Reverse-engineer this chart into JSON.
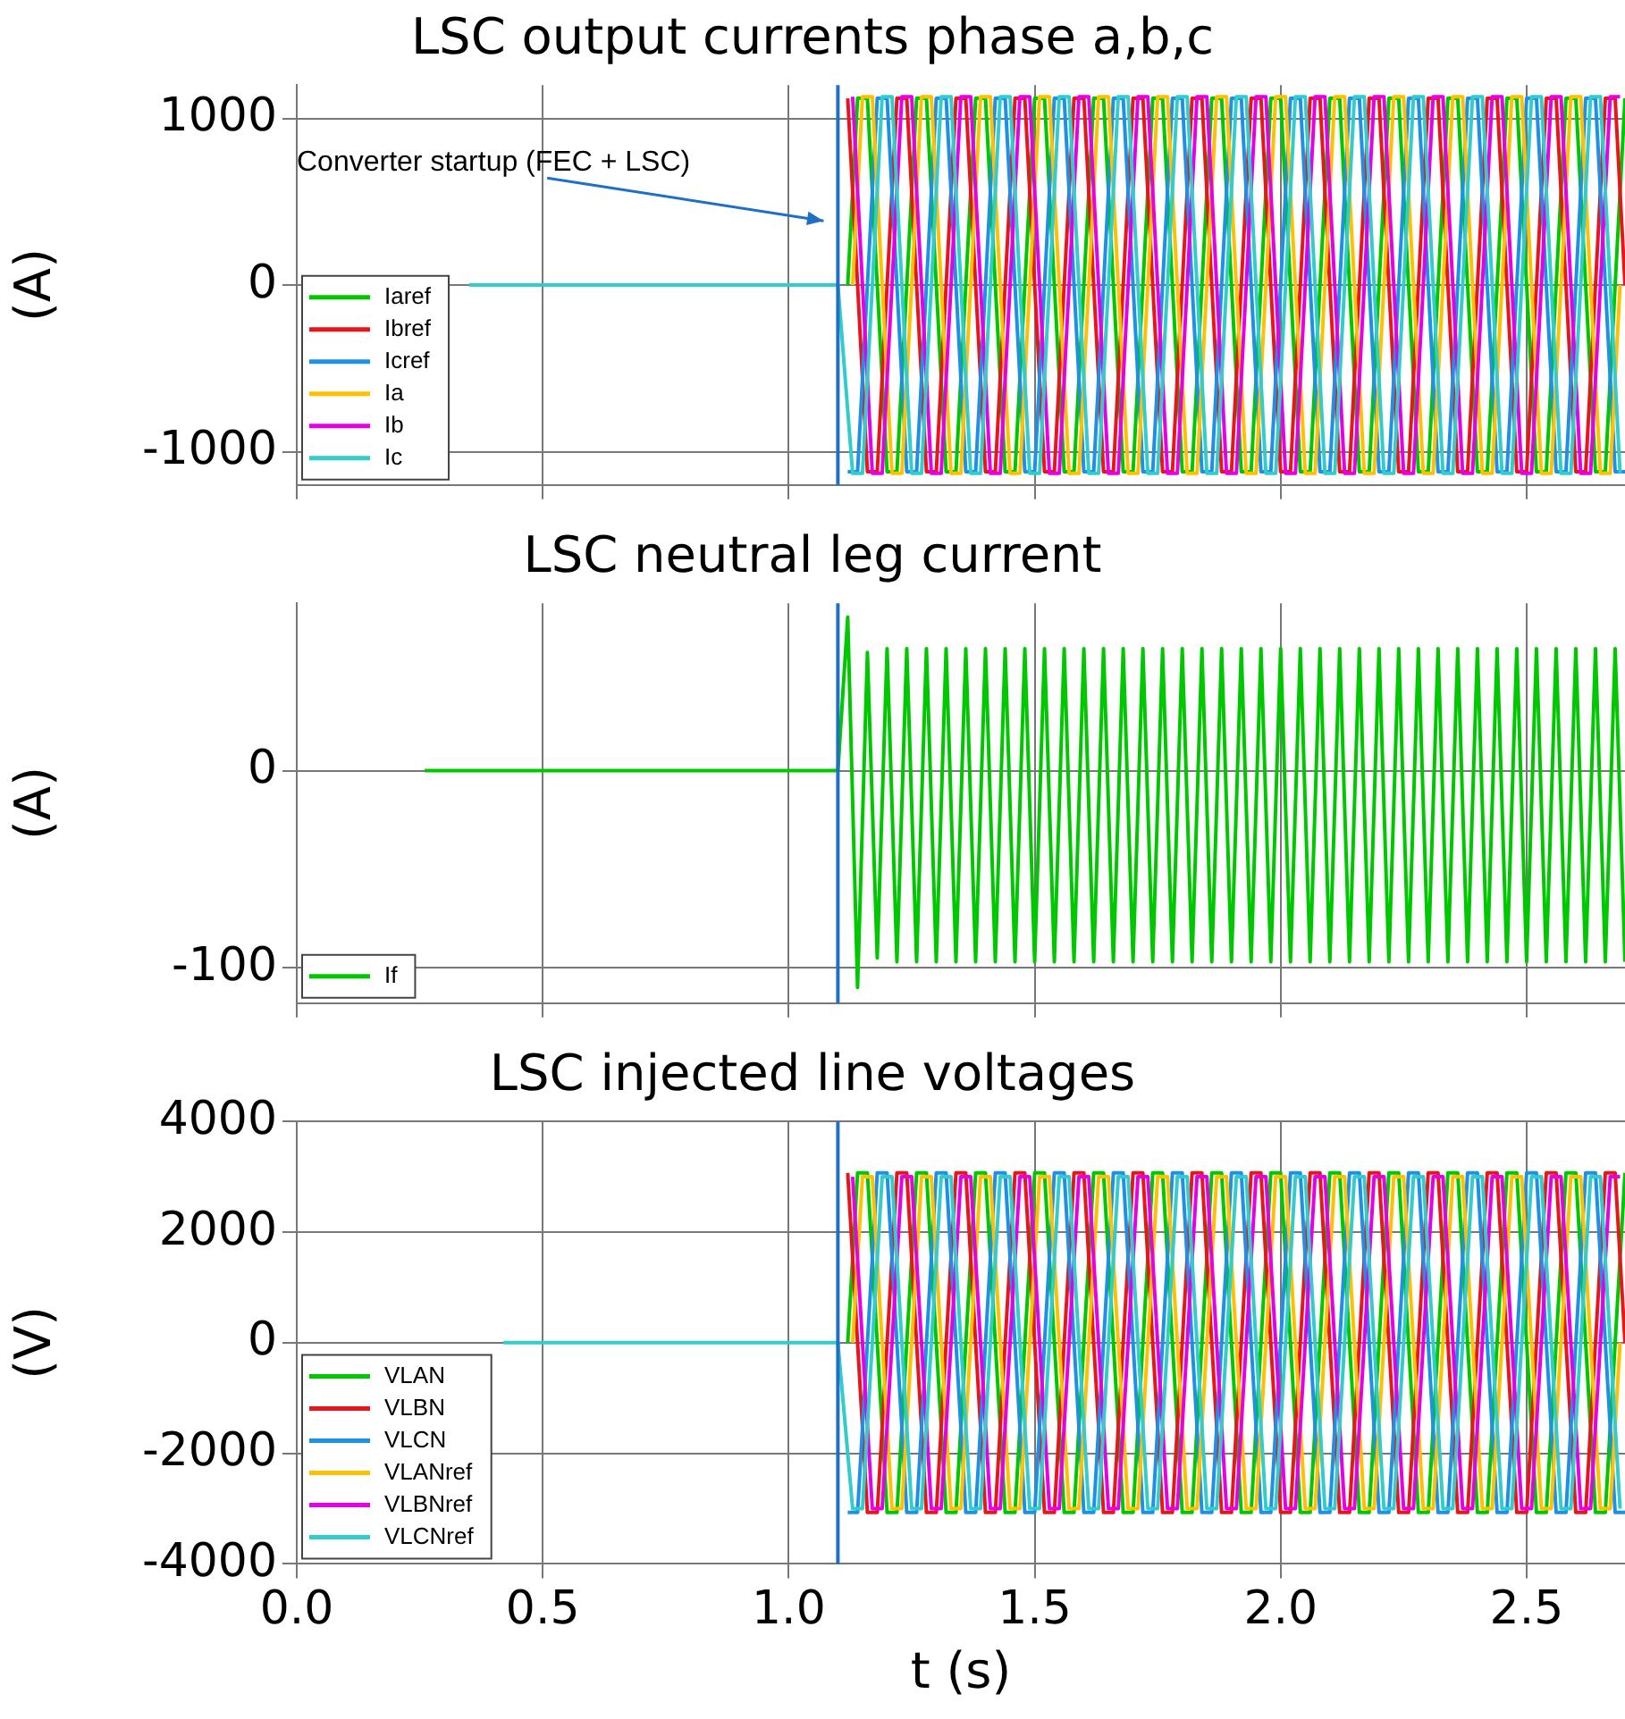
{
  "chart_data": [
    {
      "type": "line",
      "title": "LSC output currents phase a,b,c",
      "ylabel": "(A)",
      "legend": "bottom left",
      "grid": true,
      "marker": "none",
      "line_style": "solid",
      "tick_labels": "y",
      "xlim": [
        0,
        2.7
      ],
      "xticks": [
        0,
        0.5,
        1,
        1.5,
        2,
        2.5
      ],
      "ylim": [
        -1200,
        1200
      ],
      "yticks": [
        -1000,
        0,
        1000
      ],
      "ref_lines": [
        {
          "axis": "x",
          "value": 1.1,
          "color": "#1f6fc4"
        }
      ],
      "annotations": [
        "Converter startup (FEC + LSC)"
      ],
      "x": [
        1.12,
        1.14,
        1.16,
        1.18,
        1.2,
        1.22,
        1.24,
        1.26,
        1.28,
        1.3,
        1.32,
        1.34,
        1.36,
        1.38,
        1.4,
        1.42,
        1.44,
        1.46,
        1.48,
        1.5,
        1.52,
        1.54,
        1.56,
        1.58,
        1.6,
        1.62,
        1.64,
        1.66,
        1.68,
        1.7,
        1.72,
        1.74,
        1.76,
        1.78,
        1.8,
        1.82,
        1.84,
        1.86,
        1.88,
        1.9,
        1.92,
        1.94,
        1.96,
        1.98,
        2,
        2.02,
        2.04,
        2.06,
        2.08,
        2.1,
        2.12,
        2.14,
        2.16,
        2.18,
        2.2,
        2.22,
        2.24,
        2.26,
        2.28,
        2.3,
        2.32,
        2.34,
        2.36,
        2.38,
        2.4,
        2.42,
        2.44,
        2.46,
        2.48,
        2.5,
        2.52,
        2.54,
        2.56,
        2.58,
        2.6,
        2.62,
        2.64,
        2.66,
        2.68,
        2.7
      ],
      "series": [
        {
          "name": "Iaref",
          "color": "#00c800",
          "values": [
            0,
            1120,
            1120,
            0,
            -1120,
            -1120,
            0,
            1120,
            1120,
            0,
            -1120,
            -1120,
            0,
            1120,
            1120,
            0,
            -1120,
            -1120,
            0,
            1120,
            1120,
            0,
            -1120,
            -1120,
            0,
            1120,
            1120,
            0,
            -1120,
            -1120,
            0,
            1120,
            1120,
            0,
            -1120,
            -1120,
            0,
            1120,
            1120,
            0,
            -1120,
            -1120,
            0,
            1120,
            1120,
            0,
            -1120,
            -1120,
            0,
            1120,
            1120,
            0,
            -1120,
            -1120,
            0,
            1120,
            1120,
            0,
            -1120,
            -1120,
            0,
            1120,
            1120,
            0,
            -1120,
            -1120,
            0,
            1120,
            1120,
            0,
            -1120,
            -1120,
            0,
            1120,
            1120,
            0,
            -1120,
            -1120,
            0,
            1120
          ]
        },
        {
          "name": "Ibref",
          "color": "#e8161b",
          "values": [
            1120,
            0,
            -1120,
            -1120,
            0,
            1120,
            1120,
            0,
            -1120,
            -1120,
            0,
            1120,
            1120,
            0,
            -1120,
            -1120,
            0,
            1120,
            1120,
            0,
            -1120,
            -1120,
            0,
            1120,
            1120,
            0,
            -1120,
            -1120,
            0,
            1120,
            1120,
            0,
            -1120,
            -1120,
            0,
            1120,
            1120,
            0,
            -1120,
            -1120,
            0,
            1120,
            1120,
            0,
            -1120,
            -1120,
            0,
            1120,
            1120,
            0,
            -1120,
            -1120,
            0,
            1120,
            1120,
            0,
            -1120,
            -1120,
            0,
            1120,
            1120,
            0,
            -1120,
            -1120,
            0,
            1120,
            1120,
            0,
            -1120,
            -1120,
            0,
            1120,
            1120,
            0,
            -1120,
            -1120,
            0,
            1120,
            1120,
            0
          ]
        },
        {
          "name": "Icref",
          "color": "#1e90e6",
          "values": [
            -1120,
            -1120,
            0,
            1120,
            1120,
            0,
            -1120,
            -1120,
            0,
            1120,
            1120,
            0,
            -1120,
            -1120,
            0,
            1120,
            1120,
            0,
            -1120,
            -1120,
            0,
            1120,
            1120,
            0,
            -1120,
            -1120,
            0,
            1120,
            1120,
            0,
            -1120,
            -1120,
            0,
            1120,
            1120,
            0,
            -1120,
            -1120,
            0,
            1120,
            1120,
            0,
            -1120,
            -1120,
            0,
            1120,
            1120,
            0,
            -1120,
            -1120,
            0,
            1120,
            1120,
            0,
            -1120,
            -1120,
            0,
            1120,
            1120,
            0,
            -1120,
            -1120,
            0,
            1120,
            1120,
            0,
            -1120,
            -1120,
            0,
            1120,
            1120,
            0,
            -1120,
            -1120,
            0,
            1120,
            1120,
            0,
            -1120,
            -1120
          ]
        },
        {
          "name": "Ia",
          "color": "#ffc000",
          "x": [
            1.13,
            1.15,
            1.17,
            1.19,
            1.21,
            1.23,
            1.25,
            1.27,
            1.29,
            1.31,
            1.33,
            1.35,
            1.37,
            1.39,
            1.41,
            1.43,
            1.45,
            1.47,
            1.49,
            1.51,
            1.53,
            1.55,
            1.57,
            1.59,
            1.61,
            1.63,
            1.65,
            1.67,
            1.69,
            1.71,
            1.73,
            1.75,
            1.77,
            1.79,
            1.81,
            1.83,
            1.85,
            1.87,
            1.89,
            1.91,
            1.93,
            1.95,
            1.97,
            1.99,
            2.01,
            2.03,
            2.05,
            2.07,
            2.09,
            2.11,
            2.13,
            2.15,
            2.17,
            2.19,
            2.21,
            2.23,
            2.25,
            2.27,
            2.29,
            2.31,
            2.33,
            2.35,
            2.37,
            2.39,
            2.41,
            2.43,
            2.45,
            2.47,
            2.49,
            2.51,
            2.53,
            2.55,
            2.57,
            2.59,
            2.61,
            2.63,
            2.65,
            2.67,
            2.69
          ],
          "values": [
            0,
            1130,
            1130,
            0,
            -1130,
            -1130,
            0,
            1130,
            1130,
            0,
            -1130,
            -1130,
            0,
            1130,
            1130,
            0,
            -1130,
            -1130,
            0,
            1130,
            1130,
            0,
            -1130,
            -1130,
            0,
            1130,
            1130,
            0,
            -1130,
            -1130,
            0,
            1130,
            1130,
            0,
            -1130,
            -1130,
            0,
            1130,
            1130,
            0,
            -1130,
            -1130,
            0,
            1130,
            1130,
            0,
            -1130,
            -1130,
            0,
            1130,
            1130,
            0,
            -1130,
            -1130,
            0,
            1130,
            1130,
            0,
            -1130,
            -1130,
            0,
            1130,
            1130,
            0,
            -1130,
            -1130,
            0,
            1130,
            1130,
            0,
            -1130,
            -1130,
            0,
            1130,
            1130,
            0,
            -1130,
            -1130,
            0
          ]
        },
        {
          "name": "Ib",
          "color": "#e600e6",
          "x": [
            1.13,
            1.15,
            1.17,
            1.19,
            1.21,
            1.23,
            1.25,
            1.27,
            1.29,
            1.31,
            1.33,
            1.35,
            1.37,
            1.39,
            1.41,
            1.43,
            1.45,
            1.47,
            1.49,
            1.51,
            1.53,
            1.55,
            1.57,
            1.59,
            1.61,
            1.63,
            1.65,
            1.67,
            1.69,
            1.71,
            1.73,
            1.75,
            1.77,
            1.79,
            1.81,
            1.83,
            1.85,
            1.87,
            1.89,
            1.91,
            1.93,
            1.95,
            1.97,
            1.99,
            2.01,
            2.03,
            2.05,
            2.07,
            2.09,
            2.11,
            2.13,
            2.15,
            2.17,
            2.19,
            2.21,
            2.23,
            2.25,
            2.27,
            2.29,
            2.31,
            2.33,
            2.35,
            2.37,
            2.39,
            2.41,
            2.43,
            2.45,
            2.47,
            2.49,
            2.51,
            2.53,
            2.55,
            2.57,
            2.59,
            2.61,
            2.63,
            2.65,
            2.67,
            2.69
          ],
          "values": [
            1130,
            0,
            -1130,
            -1130,
            0,
            1130,
            1130,
            0,
            -1130,
            -1130,
            0,
            1130,
            1130,
            0,
            -1130,
            -1130,
            0,
            1130,
            1130,
            0,
            -1130,
            -1130,
            0,
            1130,
            1130,
            0,
            -1130,
            -1130,
            0,
            1130,
            1130,
            0,
            -1130,
            -1130,
            0,
            1130,
            1130,
            0,
            -1130,
            -1130,
            0,
            1130,
            1130,
            0,
            -1130,
            -1130,
            0,
            1130,
            1130,
            0,
            -1130,
            -1130,
            0,
            1130,
            1130,
            0,
            -1130,
            -1130,
            0,
            1130,
            1130,
            0,
            -1130,
            -1130,
            0,
            1130,
            1130,
            0,
            -1130,
            -1130,
            0,
            1130,
            1130,
            0,
            -1130,
            -1130,
            0,
            1130,
            1130
          ]
        },
        {
          "name": "Ic",
          "color": "#33cccc",
          "x": [
            0.35,
            1.1,
            1.13,
            1.15,
            1.17,
            1.19,
            1.21,
            1.23,
            1.25,
            1.27,
            1.29,
            1.31,
            1.33,
            1.35,
            1.37,
            1.39,
            1.41,
            1.43,
            1.45,
            1.47,
            1.49,
            1.51,
            1.53,
            1.55,
            1.57,
            1.59,
            1.61,
            1.63,
            1.65,
            1.67,
            1.69,
            1.71,
            1.73,
            1.75,
            1.77,
            1.79,
            1.81,
            1.83,
            1.85,
            1.87,
            1.89,
            1.91,
            1.93,
            1.95,
            1.97,
            1.99,
            2.01,
            2.03,
            2.05,
            2.07,
            2.09,
            2.11,
            2.13,
            2.15,
            2.17,
            2.19,
            2.21,
            2.23,
            2.25,
            2.27,
            2.29,
            2.31,
            2.33,
            2.35,
            2.37,
            2.39,
            2.41,
            2.43,
            2.45,
            2.47,
            2.49,
            2.51,
            2.53,
            2.55,
            2.57,
            2.59,
            2.61,
            2.63,
            2.65,
            2.67,
            2.69
          ],
          "values": [
            0,
            0,
            -1130,
            -1130,
            0,
            1130,
            1130,
            0,
            -1130,
            -1130,
            0,
            1130,
            1130,
            0,
            -1130,
            -1130,
            0,
            1130,
            1130,
            0,
            -1130,
            -1130,
            0,
            1130,
            1130,
            0,
            -1130,
            -1130,
            0,
            1130,
            1130,
            0,
            -1130,
            -1130,
            0,
            1130,
            1130,
            0,
            -1130,
            -1130,
            0,
            1130,
            1130,
            0,
            -1130,
            -1130,
            0,
            1130,
            1130,
            0,
            -1130,
            -1130,
            0,
            1130,
            1130,
            0,
            -1130,
            -1130,
            0,
            1130,
            1130,
            0,
            -1130,
            -1130,
            0,
            1130,
            1130,
            0,
            -1130,
            -1130,
            0,
            1130,
            1130,
            0,
            -1130,
            -1130,
            0,
            1130,
            1130,
            0,
            -1130
          ]
        }
      ]
    },
    {
      "type": "line",
      "title": "LSC neutral leg current",
      "ylabel": "(A)",
      "legend": "bottom left",
      "grid": true,
      "marker": "none",
      "line_style": "solid",
      "tick_labels": "y",
      "xlim": [
        0,
        2.7
      ],
      "xticks": [
        0,
        0.5,
        1,
        1.5,
        2,
        2.5
      ],
      "ylim": [
        -118,
        85
      ],
      "yticks": [
        -100,
        0
      ],
      "ref_lines": [
        {
          "axis": "x",
          "value": 1.1,
          "color": "#1f6fc4"
        }
      ],
      "x": [
        0.26,
        1.1,
        1.12,
        1.14,
        1.16,
        1.18,
        1.2,
        1.22,
        1.24,
        1.26,
        1.28,
        1.3,
        1.32,
        1.34,
        1.36,
        1.38,
        1.4,
        1.42,
        1.44,
        1.46,
        1.48,
        1.5,
        1.52,
        1.54,
        1.56,
        1.58,
        1.6,
        1.62,
        1.64,
        1.66,
        1.68,
        1.7,
        1.72,
        1.74,
        1.76,
        1.78,
        1.8,
        1.82,
        1.84,
        1.86,
        1.88,
        1.9,
        1.92,
        1.94,
        1.96,
        1.98,
        2,
        2.02,
        2.04,
        2.06,
        2.08,
        2.1,
        2.12,
        2.14,
        2.16,
        2.18,
        2.2,
        2.22,
        2.24,
        2.26,
        2.28,
        2.3,
        2.32,
        2.34,
        2.36,
        2.38,
        2.4,
        2.42,
        2.44,
        2.46,
        2.48,
        2.5,
        2.52,
        2.54,
        2.56,
        2.58,
        2.6,
        2.62,
        2.64,
        2.66,
        2.68,
        2.7
      ],
      "series": [
        {
          "name": "If",
          "color": "#00c800",
          "values": [
            0,
            0,
            78,
            -110,
            60,
            -95,
            62,
            -97,
            62,
            -97,
            62,
            -97,
            62,
            -97,
            62,
            -97,
            62,
            -97,
            62,
            -97,
            62,
            -97,
            62,
            -97,
            62,
            -97,
            62,
            -97,
            62,
            -97,
            62,
            -97,
            62,
            -97,
            62,
            -97,
            62,
            -97,
            62,
            -97,
            62,
            -97,
            62,
            -97,
            62,
            -97,
            62,
            -97,
            62,
            -97,
            62,
            -97,
            62,
            -97,
            62,
            -97,
            62,
            -97,
            62,
            -97,
            62,
            -97,
            62,
            -97,
            62,
            -97,
            62,
            -97,
            62,
            -97,
            62,
            -97,
            62,
            -97,
            62,
            -97,
            62,
            -97,
            62,
            -97,
            62,
            -97
          ]
        }
      ]
    },
    {
      "type": "line",
      "title": "LSC injected line voltages",
      "xlabel": "t (s)",
      "ylabel": "(V)",
      "legend": "bottom left",
      "grid": true,
      "marker": "none",
      "line_style": "solid",
      "xlim": [
        0,
        2.7
      ],
      "xticks": [
        {
          "value": 0,
          "label": "0.0"
        },
        0.5,
        {
          "value": 1,
          "label": "1.0"
        },
        1.5,
        {
          "value": 2,
          "label": "2.0"
        },
        2.5
      ],
      "ylim": [
        -4000,
        4000
      ],
      "yticks": [
        -4000,
        -2000,
        0,
        2000,
        4000
      ],
      "ref_lines": [
        {
          "axis": "x",
          "value": 1.1,
          "color": "#1f6fc4"
        }
      ],
      "x": [
        1.12,
        1.14,
        1.16,
        1.18,
        1.2,
        1.22,
        1.24,
        1.26,
        1.28,
        1.3,
        1.32,
        1.34,
        1.36,
        1.38,
        1.4,
        1.42,
        1.44,
        1.46,
        1.48,
        1.5,
        1.52,
        1.54,
        1.56,
        1.58,
        1.6,
        1.62,
        1.64,
        1.66,
        1.68,
        1.7,
        1.72,
        1.74,
        1.76,
        1.78,
        1.8,
        1.82,
        1.84,
        1.86,
        1.88,
        1.9,
        1.92,
        1.94,
        1.96,
        1.98,
        2,
        2.02,
        2.04,
        2.06,
        2.08,
        2.1,
        2.12,
        2.14,
        2.16,
        2.18,
        2.2,
        2.22,
        2.24,
        2.26,
        2.28,
        2.3,
        2.32,
        2.34,
        2.36,
        2.38,
        2.4,
        2.42,
        2.44,
        2.46,
        2.48,
        2.5,
        2.52,
        2.54,
        2.56,
        2.58,
        2.6,
        2.62,
        2.64,
        2.66,
        2.68,
        2.7
      ],
      "series": [
        {
          "name": "VLAN",
          "color": "#00c800",
          "values": [
            0,
            3070,
            3070,
            0,
            -3070,
            -3070,
            0,
            3070,
            3070,
            0,
            -3070,
            -3070,
            0,
            3070,
            3070,
            0,
            -3070,
            -3070,
            0,
            3070,
            3070,
            0,
            -3070,
            -3070,
            0,
            3070,
            3070,
            0,
            -3070,
            -3070,
            0,
            3070,
            3070,
            0,
            -3070,
            -3070,
            0,
            3070,
            3070,
            0,
            -3070,
            -3070,
            0,
            3070,
            3070,
            0,
            -3070,
            -3070,
            0,
            3070,
            3070,
            0,
            -3070,
            -3070,
            0,
            3070,
            3070,
            0,
            -3070,
            -3070,
            0,
            3070,
            3070,
            0,
            -3070,
            -3070,
            0,
            3070,
            3070,
            0,
            -3070,
            -3070,
            0,
            3070,
            3070,
            0,
            -3070,
            -3070,
            0,
            3070
          ]
        },
        {
          "name": "VLBN",
          "color": "#e8161b",
          "values": [
            3070,
            0,
            -3070,
            -3070,
            0,
            3070,
            3070,
            0,
            -3070,
            -3070,
            0,
            3070,
            3070,
            0,
            -3070,
            -3070,
            0,
            3070,
            3070,
            0,
            -3070,
            -3070,
            0,
            3070,
            3070,
            0,
            -3070,
            -3070,
            0,
            3070,
            3070,
            0,
            -3070,
            -3070,
            0,
            3070,
            3070,
            0,
            -3070,
            -3070,
            0,
            3070,
            3070,
            0,
            -3070,
            -3070,
            0,
            3070,
            3070,
            0,
            -3070,
            -3070,
            0,
            3070,
            3070,
            0,
            -3070,
            -3070,
            0,
            3070,
            3070,
            0,
            -3070,
            -3070,
            0,
            3070,
            3070,
            0,
            -3070,
            -3070,
            0,
            3070,
            3070,
            0,
            -3070,
            -3070,
            0,
            3070,
            3070,
            0
          ]
        },
        {
          "name": "VLCN",
          "color": "#1e90e6",
          "values": [
            -3070,
            -3070,
            0,
            3070,
            3070,
            0,
            -3070,
            -3070,
            0,
            3070,
            3070,
            0,
            -3070,
            -3070,
            0,
            3070,
            3070,
            0,
            -3070,
            -3070,
            0,
            3070,
            3070,
            0,
            -3070,
            -3070,
            0,
            3070,
            3070,
            0,
            -3070,
            -3070,
            0,
            3070,
            3070,
            0,
            -3070,
            -3070,
            0,
            3070,
            3070,
            0,
            -3070,
            -3070,
            0,
            3070,
            3070,
            0,
            -3070,
            -3070,
            0,
            3070,
            3070,
            0,
            -3070,
            -3070,
            0,
            3070,
            3070,
            0,
            -3070,
            -3070,
            0,
            3070,
            3070,
            0,
            -3070,
            -3070,
            0,
            3070,
            3070,
            0,
            -3070,
            -3070,
            0,
            3070,
            3070,
            0,
            -3070,
            -3070
          ]
        },
        {
          "name": "VLANref",
          "color": "#ffc000",
          "x": [
            1.13,
            1.15,
            1.17,
            1.19,
            1.21,
            1.23,
            1.25,
            1.27,
            1.29,
            1.31,
            1.33,
            1.35,
            1.37,
            1.39,
            1.41,
            1.43,
            1.45,
            1.47,
            1.49,
            1.51,
            1.53,
            1.55,
            1.57,
            1.59,
            1.61,
            1.63,
            1.65,
            1.67,
            1.69,
            1.71,
            1.73,
            1.75,
            1.77,
            1.79,
            1.81,
            1.83,
            1.85,
            1.87,
            1.89,
            1.91,
            1.93,
            1.95,
            1.97,
            1.99,
            2.01,
            2.03,
            2.05,
            2.07,
            2.09,
            2.11,
            2.13,
            2.15,
            2.17,
            2.19,
            2.21,
            2.23,
            2.25,
            2.27,
            2.29,
            2.31,
            2.33,
            2.35,
            2.37,
            2.39,
            2.41,
            2.43,
            2.45,
            2.47,
            2.49,
            2.51,
            2.53,
            2.55,
            2.57,
            2.59,
            2.61,
            2.63,
            2.65,
            2.67,
            2.69
          ],
          "values": [
            0,
            3000,
            3000,
            0,
            -3000,
            -3000,
            0,
            3000,
            3000,
            0,
            -3000,
            -3000,
            0,
            3000,
            3000,
            0,
            -3000,
            -3000,
            0,
            3000,
            3000,
            0,
            -3000,
            -3000,
            0,
            3000,
            3000,
            0,
            -3000,
            -3000,
            0,
            3000,
            3000,
            0,
            -3000,
            -3000,
            0,
            3000,
            3000,
            0,
            -3000,
            -3000,
            0,
            3000,
            3000,
            0,
            -3000,
            -3000,
            0,
            3000,
            3000,
            0,
            -3000,
            -3000,
            0,
            3000,
            3000,
            0,
            -3000,
            -3000,
            0,
            3000,
            3000,
            0,
            -3000,
            -3000,
            0,
            3000,
            3000,
            0,
            -3000,
            -3000,
            0,
            3000,
            3000,
            0,
            -3000,
            -3000,
            0
          ]
        },
        {
          "name": "VLBNref",
          "color": "#e600e6",
          "x": [
            1.13,
            1.15,
            1.17,
            1.19,
            1.21,
            1.23,
            1.25,
            1.27,
            1.29,
            1.31,
            1.33,
            1.35,
            1.37,
            1.39,
            1.41,
            1.43,
            1.45,
            1.47,
            1.49,
            1.51,
            1.53,
            1.55,
            1.57,
            1.59,
            1.61,
            1.63,
            1.65,
            1.67,
            1.69,
            1.71,
            1.73,
            1.75,
            1.77,
            1.79,
            1.81,
            1.83,
            1.85,
            1.87,
            1.89,
            1.91,
            1.93,
            1.95,
            1.97,
            1.99,
            2.01,
            2.03,
            2.05,
            2.07,
            2.09,
            2.11,
            2.13,
            2.15,
            2.17,
            2.19,
            2.21,
            2.23,
            2.25,
            2.27,
            2.29,
            2.31,
            2.33,
            2.35,
            2.37,
            2.39,
            2.41,
            2.43,
            2.45,
            2.47,
            2.49,
            2.51,
            2.53,
            2.55,
            2.57,
            2.59,
            2.61,
            2.63,
            2.65,
            2.67,
            2.69
          ],
          "values": [
            3000,
            0,
            -3000,
            -3000,
            0,
            3000,
            3000,
            0,
            -3000,
            -3000,
            0,
            3000,
            3000,
            0,
            -3000,
            -3000,
            0,
            3000,
            3000,
            0,
            -3000,
            -3000,
            0,
            3000,
            3000,
            0,
            -3000,
            -3000,
            0,
            3000,
            3000,
            0,
            -3000,
            -3000,
            0,
            3000,
            3000,
            0,
            -3000,
            -3000,
            0,
            3000,
            3000,
            0,
            -3000,
            -3000,
            0,
            3000,
            3000,
            0,
            -3000,
            -3000,
            0,
            3000,
            3000,
            0,
            -3000,
            -3000,
            0,
            3000,
            3000,
            0,
            -3000,
            -3000,
            0,
            3000,
            3000,
            0,
            -3000,
            -3000,
            0,
            3000,
            3000,
            0,
            -3000,
            -3000,
            0,
            3000,
            3000
          ]
        },
        {
          "name": "VLCNref",
          "color": "#33cccc",
          "x": [
            0.42,
            1.1,
            1.13,
            1.15,
            1.17,
            1.19,
            1.21,
            1.23,
            1.25,
            1.27,
            1.29,
            1.31,
            1.33,
            1.35,
            1.37,
            1.39,
            1.41,
            1.43,
            1.45,
            1.47,
            1.49,
            1.51,
            1.53,
            1.55,
            1.57,
            1.59,
            1.61,
            1.63,
            1.65,
            1.67,
            1.69,
            1.71,
            1.73,
            1.75,
            1.77,
            1.79,
            1.81,
            1.83,
            1.85,
            1.87,
            1.89,
            1.91,
            1.93,
            1.95,
            1.97,
            1.99,
            2.01,
            2.03,
            2.05,
            2.07,
            2.09,
            2.11,
            2.13,
            2.15,
            2.17,
            2.19,
            2.21,
            2.23,
            2.25,
            2.27,
            2.29,
            2.31,
            2.33,
            2.35,
            2.37,
            2.39,
            2.41,
            2.43,
            2.45,
            2.47,
            2.49,
            2.51,
            2.53,
            2.55,
            2.57,
            2.59,
            2.61,
            2.63,
            2.65,
            2.67,
            2.69
          ],
          "values": [
            0,
            0,
            -3000,
            -3000,
            0,
            3000,
            3000,
            0,
            -3000,
            -3000,
            0,
            3000,
            3000,
            0,
            -3000,
            -3000,
            0,
            3000,
            3000,
            0,
            -3000,
            -3000,
            0,
            3000,
            3000,
            0,
            -3000,
            -3000,
            0,
            3000,
            3000,
            0,
            -3000,
            -3000,
            0,
            3000,
            3000,
            0,
            -3000,
            -3000,
            0,
            3000,
            3000,
            0,
            -3000,
            -3000,
            0,
            3000,
            3000,
            0,
            -3000,
            -3000,
            0,
            3000,
            3000,
            0,
            -3000,
            -3000,
            0,
            3000,
            3000,
            0,
            -3000,
            -3000,
            0,
            3000,
            3000,
            0,
            -3000,
            -3000,
            0,
            3000,
            3000,
            0,
            -3000,
            -3000,
            0,
            3000,
            3000,
            0,
            -3000
          ]
        }
      ]
    }
  ]
}
